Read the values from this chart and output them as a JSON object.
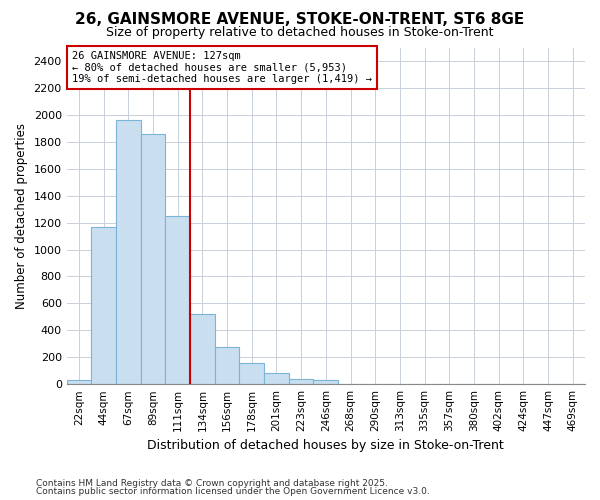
{
  "title_line1": "26, GAINSMORE AVENUE, STOKE-ON-TRENT, ST6 8GE",
  "title_line2": "Size of property relative to detached houses in Stoke-on-Trent",
  "xlabel": "Distribution of detached houses by size in Stoke-on-Trent",
  "ylabel": "Number of detached properties",
  "categories": [
    "22sqm",
    "44sqm",
    "67sqm",
    "89sqm",
    "111sqm",
    "134sqm",
    "156sqm",
    "178sqm",
    "201sqm",
    "223sqm",
    "246sqm",
    "268sqm",
    "290sqm",
    "313sqm",
    "335sqm",
    "357sqm",
    "380sqm",
    "402sqm",
    "424sqm",
    "447sqm",
    "469sqm"
  ],
  "values": [
    30,
    1170,
    1960,
    1860,
    1250,
    520,
    275,
    155,
    85,
    35,
    30,
    5,
    0,
    0,
    0,
    0,
    0,
    0,
    0,
    0,
    0
  ],
  "bar_color": "#c9dff0",
  "bar_edge_color": "#7ab5d8",
  "highlight_index": 5,
  "highlight_color": "#cc0000",
  "annotation_line1": "26 GAINSMORE AVENUE: 127sqm",
  "annotation_line2": "← 80% of detached houses are smaller (5,953)",
  "annotation_line3": "19% of semi-detached houses are larger (1,419) →",
  "annotation_box_color": "#ffffff",
  "annotation_box_edge": "#cc0000",
  "ylim": [
    0,
    2500
  ],
  "yticks": [
    0,
    200,
    400,
    600,
    800,
    1000,
    1200,
    1400,
    1600,
    1800,
    2000,
    2200,
    2400
  ],
  "footnote1": "Contains HM Land Registry data © Crown copyright and database right 2025.",
  "footnote2": "Contains public sector information licensed under the Open Government Licence v3.0.",
  "bg_color": "#ffffff",
  "plot_bg_color": "#ffffff",
  "grid_color": "#c8d0dc"
}
